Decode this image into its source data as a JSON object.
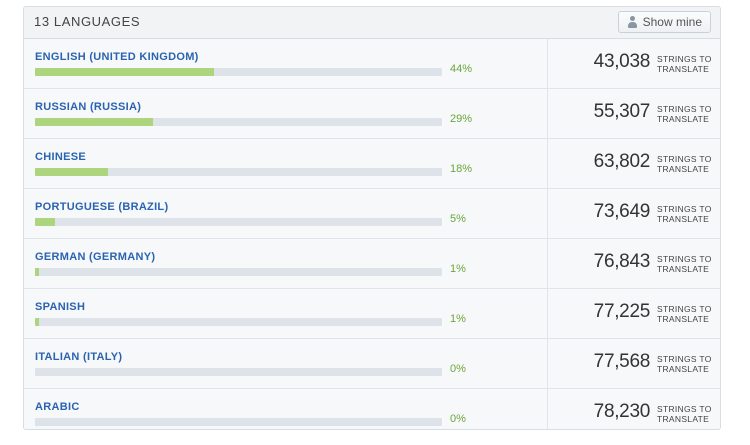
{
  "header": {
    "title": "13 LANGUAGES",
    "show_mine_label": "Show mine",
    "show_mine_icon": "user-icon"
  },
  "languages": [
    {
      "name": "ENGLISH (UNITED KINGDOM)",
      "percent": 44,
      "percent_label": "44%",
      "count": "43,038",
      "count_label_1": "STRINGS TO",
      "count_label_2": "TRANSLATE"
    },
    {
      "name": "RUSSIAN (RUSSIA)",
      "percent": 29,
      "percent_label": "29%",
      "count": "55,307",
      "count_label_1": "STRINGS TO",
      "count_label_2": "TRANSLATE"
    },
    {
      "name": "CHINESE",
      "percent": 18,
      "percent_label": "18%",
      "count": "63,802",
      "count_label_1": "STRINGS TO",
      "count_label_2": "TRANSLATE"
    },
    {
      "name": "PORTUGUESE (BRAZIL)",
      "percent": 5,
      "percent_label": "5%",
      "count": "73,649",
      "count_label_1": "STRINGS TO",
      "count_label_2": "TRANSLATE"
    },
    {
      "name": "GERMAN (GERMANY)",
      "percent": 1,
      "percent_label": "1%",
      "count": "76,843",
      "count_label_1": "STRINGS TO",
      "count_label_2": "TRANSLATE"
    },
    {
      "name": "SPANISH",
      "percent": 1,
      "percent_label": "1%",
      "count": "77,225",
      "count_label_1": "STRINGS TO",
      "count_label_2": "TRANSLATE"
    },
    {
      "name": "ITALIAN (ITALY)",
      "percent": 0,
      "percent_label": "0%",
      "count": "77,568",
      "count_label_1": "STRINGS TO",
      "count_label_2": "TRANSLATE"
    },
    {
      "name": "ARABIC",
      "percent": 0,
      "percent_label": "0%",
      "count": "78,230",
      "count_label_1": "STRINGS TO",
      "count_label_2": "TRANSLATE"
    }
  ],
  "colors": {
    "language_link": "#2a63b0",
    "progress_fill": "#acd57e",
    "progress_track": "#dde3e9",
    "percent_text": "#6ca43c"
  }
}
